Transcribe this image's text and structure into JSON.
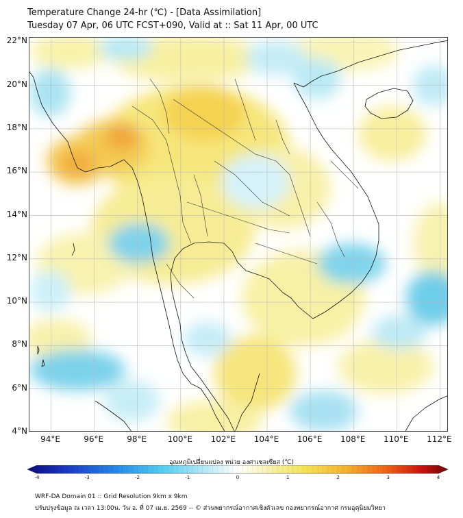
{
  "title": {
    "line1": "Temperature Change 24-hr (℃) - [Data Assimilation]",
    "line2": "Tuesday 07 Apr, 06 UTC FCST+090, Valid at :: Sat 11 Apr, 00 UTC"
  },
  "map": {
    "lat_labels": [
      "22°N",
      "20°N",
      "18°N",
      "16°N",
      "14°N",
      "12°N",
      "10°N",
      "8°N",
      "6°N",
      "4°N"
    ],
    "lon_labels": [
      "94°E",
      "96°E",
      "98°E",
      "100°E",
      "102°E",
      "104°E",
      "106°E",
      "108°E",
      "110°E",
      "112°E"
    ],
    "lat_range": [
      4,
      22.2
    ],
    "lon_range": [
      93,
      112.4
    ]
  },
  "colorbar": {
    "title": "อุณหภูมิเปลี่ยนแปลง หน่วย องศาเซลเซียส (℃)",
    "ticks": [
      "-4",
      "-3",
      "-2",
      "-1",
      "0",
      "1",
      "2",
      "3",
      "4"
    ],
    "range": [
      -4,
      4
    ]
  },
  "footer": {
    "line1": "WRF-DA Domain 01 :: Grid Resolution 9km x 9km",
    "line2": "ปรับปรุงข้อมูล ณ เวลา 13:00น. วัน อ. ที่ 07 เม.ย. 2569 -- © ส่วนพยากรณ์อากาศเชิงตัวเลข กองพยากรณ์อากาศ กรมอุตุนิยมวิทยา"
  },
  "colors": {
    "warm_yellow": "#f7ef9a",
    "warm_orange": "#f5b53c",
    "cool_cyan": "#7fd6ee",
    "coastline": "#111111",
    "grid": "#b9b9b9"
  }
}
